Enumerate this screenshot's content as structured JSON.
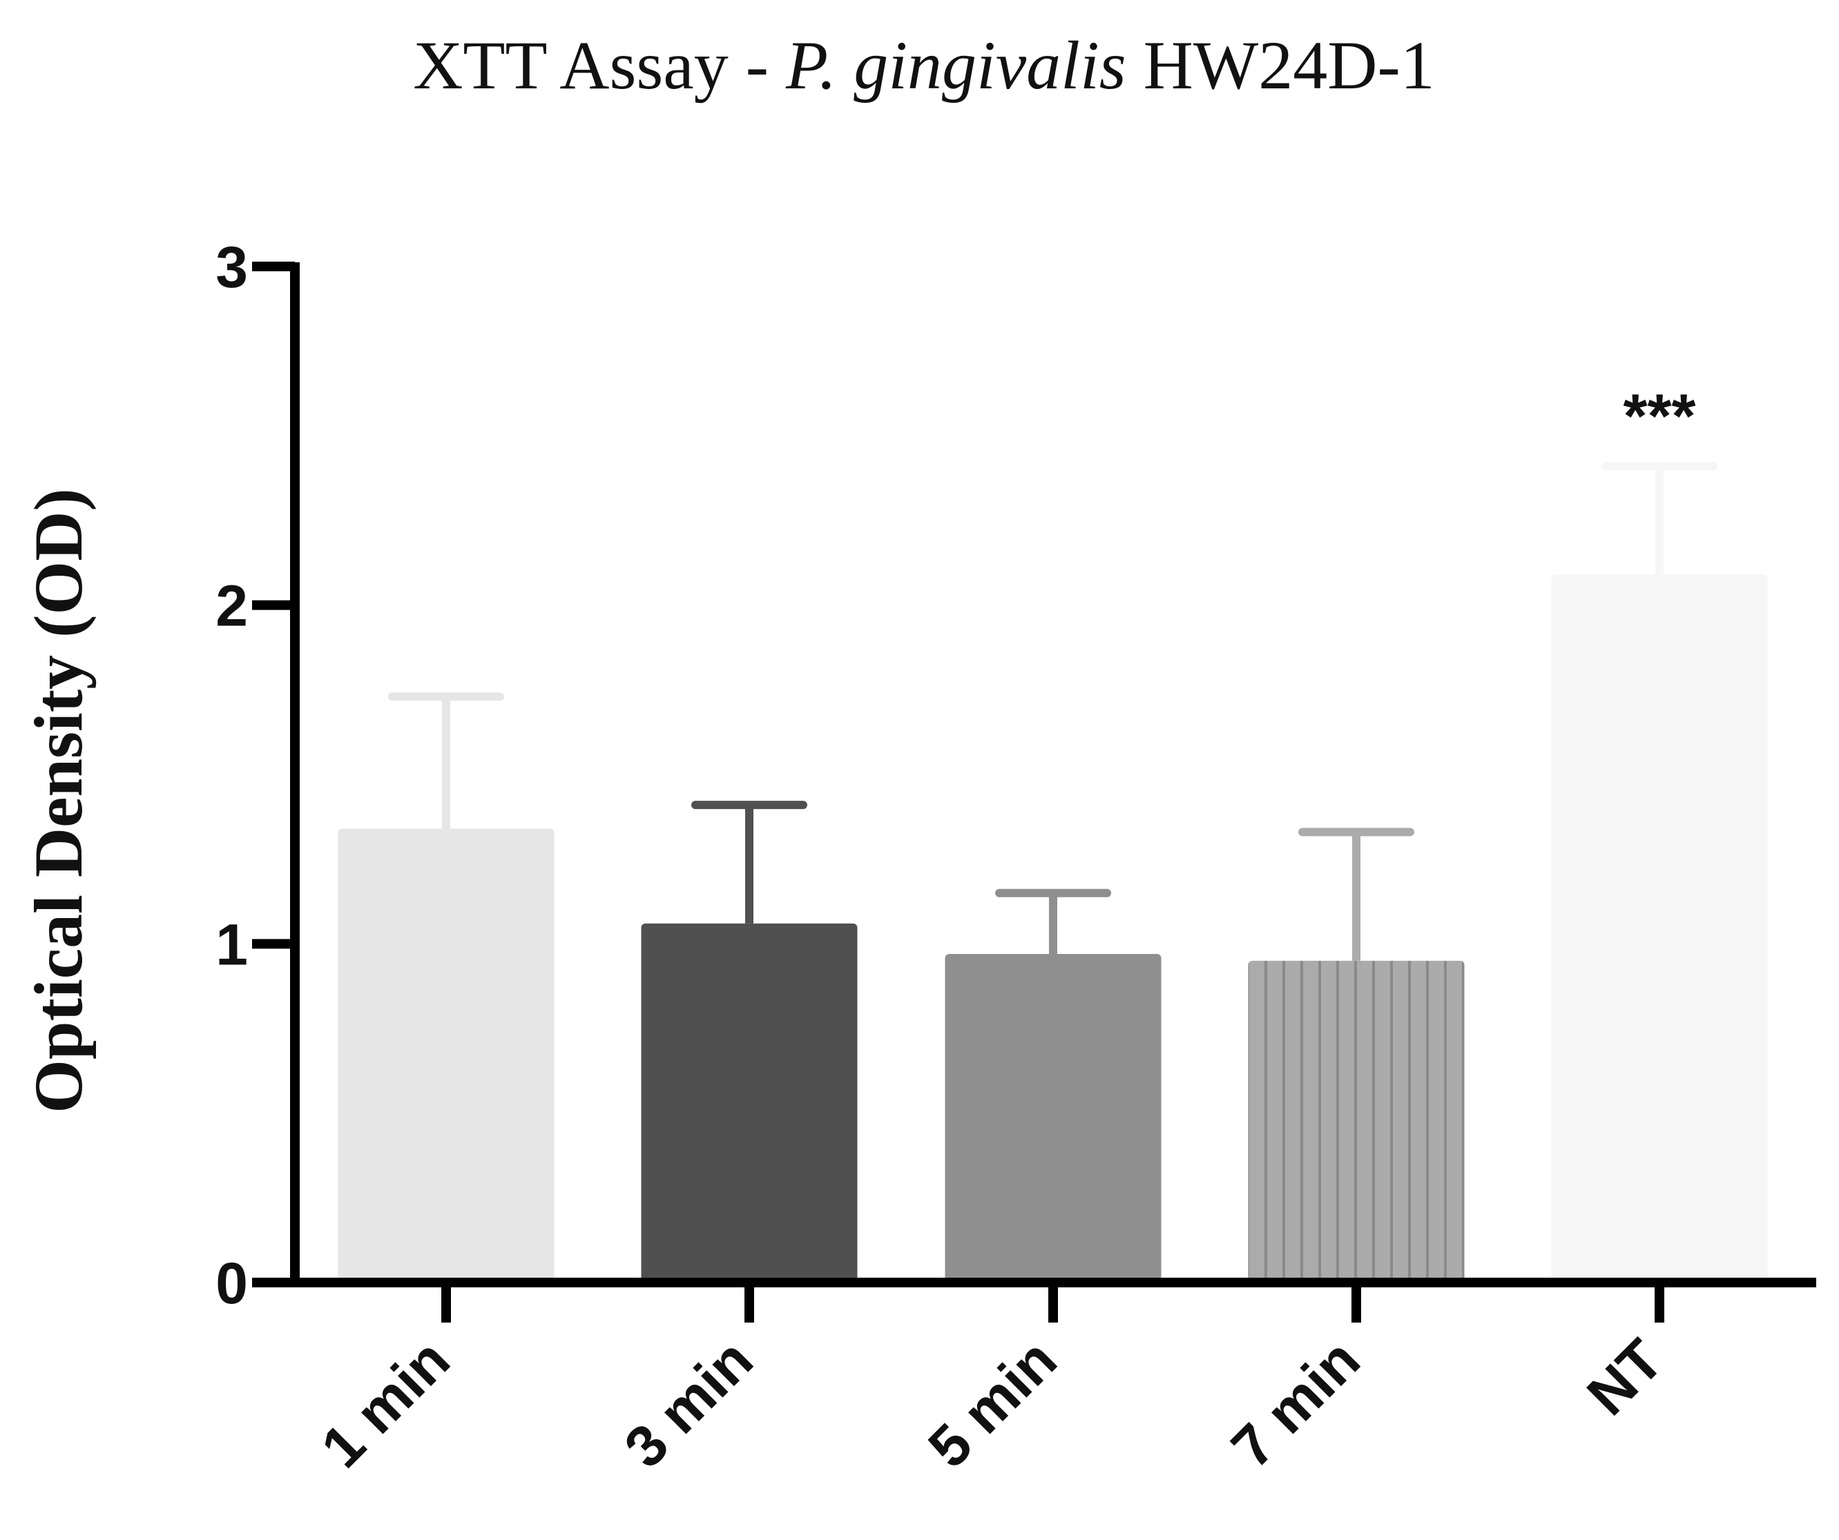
{
  "chart_data": {
    "type": "bar",
    "title": {
      "prefix": "XTT Assay - ",
      "italic": "P. gingivalis",
      "suffix": " HW24D-1"
    },
    "xlabel": "",
    "ylabel": "Optical Density (OD)",
    "ylim": [
      0,
      3
    ],
    "yticks": [
      "0",
      "1",
      "2",
      "3"
    ],
    "categories": [
      "1 min",
      "3 min",
      "5 min",
      "7 min",
      "NT"
    ],
    "values": [
      1.34,
      1.06,
      0.97,
      0.95,
      2.09
    ],
    "errors": [
      0.39,
      0.35,
      0.18,
      0.38,
      0.32
    ],
    "significance": [
      "",
      "",
      "",
      "",
      "***"
    ],
    "bar_colors": [
      "#e6e6e6",
      "#505050",
      "#8f8f8f",
      "#ababab",
      "#f6f6f6"
    ],
    "bar_patterns": [
      "solid",
      "solid",
      "solid",
      "vertical-lines",
      "solid"
    ],
    "errorbar_colors": [
      "#e6e6e6",
      "#505050",
      "#8f8f8f",
      "#ababab",
      "#f6f6f6"
    ],
    "grid": false,
    "legend": "none"
  }
}
